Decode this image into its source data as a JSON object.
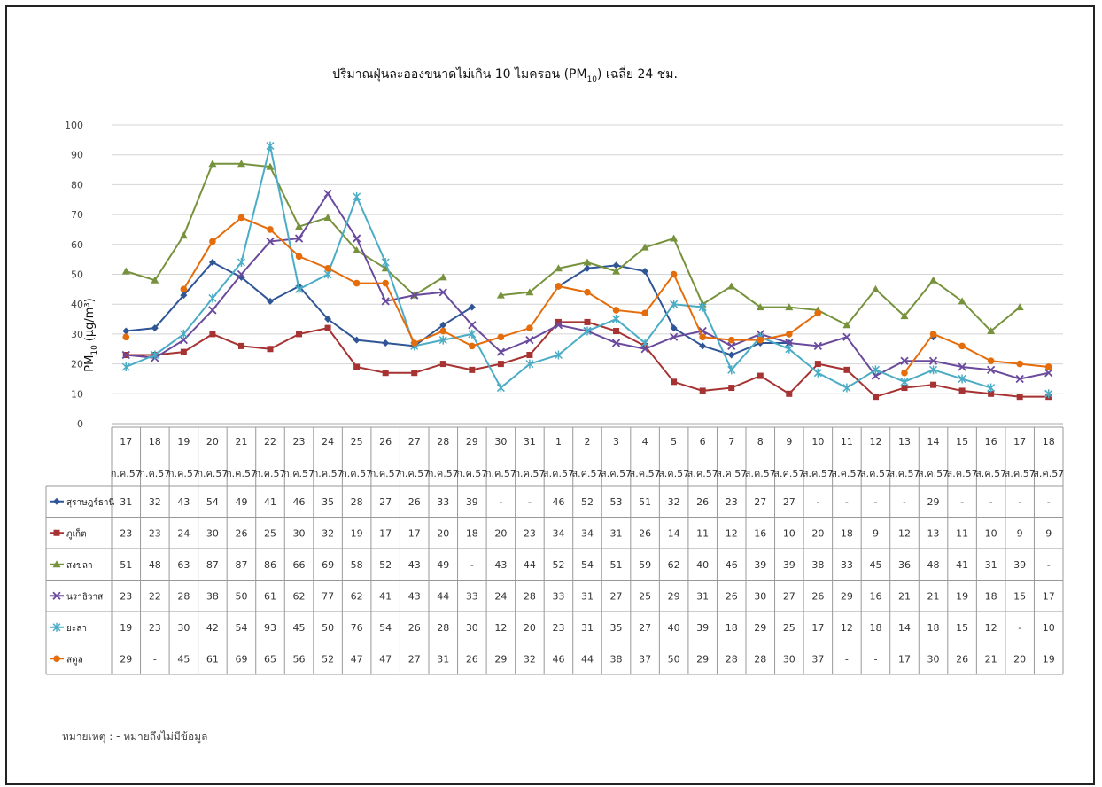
{
  "note": "หมายเหตุ : - หมายถึงไม่มีข้อมูล",
  "chart_data": {
    "type": "line",
    "title_main": "ปริมาณฝุ่นละอองขนาดไม่เกิน 10 ไมครอน (PM",
    "title_sub": "10",
    "title_end": ") เฉลี่ย 24 ชม.",
    "ylabel_main": "PM",
    "ylabel_sub": "10",
    "ylabel_unit": "(µg/m³)",
    "ylim": [
      0,
      100
    ],
    "yticks": [
      0,
      10,
      20,
      30,
      40,
      50,
      60,
      70,
      80,
      90,
      100
    ],
    "grid": true,
    "legend": "table",
    "x_day": [
      "17",
      "18",
      "19",
      "20",
      "21",
      "22",
      "23",
      "24",
      "25",
      "26",
      "27",
      "28",
      "29",
      "30",
      "31",
      "1",
      "2",
      "3",
      "4",
      "5",
      "6",
      "7",
      "8",
      "9",
      "10",
      "11",
      "12",
      "13",
      "14",
      "15",
      "16",
      "17",
      "18"
    ],
    "x_month": [
      "ก.ค.57",
      "ก.ค.57",
      "ก.ค.57",
      "ก.ค.57",
      "ก.ค.57",
      "ก.ค.57",
      "ก.ค.57",
      "ก.ค.57",
      "ก.ค.57",
      "ก.ค.57",
      "ก.ค.57",
      "ก.ค.57",
      "ก.ค.57",
      "ก.ค.57",
      "ก.ค.57",
      "ส.ค.57",
      "ส.ค.57",
      "ส.ค.57",
      "ส.ค.57",
      "ส.ค.57",
      "ส.ค.57",
      "ส.ค.57",
      "ส.ค.57",
      "ส.ค.57",
      "ส.ค.57",
      "ส.ค.57",
      "ส.ค.57",
      "ส.ค.57",
      "ส.ค.57",
      "ส.ค.57",
      "ส.ค.57",
      "ส.ค.57",
      "ส.ค.57"
    ],
    "missing_label": "-",
    "series": [
      {
        "name": "สุราษฎร์ธานี",
        "color": "#2f5597",
        "marker": "diamond",
        "values": [
          31,
          32,
          43,
          54,
          49,
          41,
          46,
          35,
          28,
          27,
          26,
          33,
          39,
          null,
          null,
          46,
          52,
          53,
          51,
          32,
          26,
          23,
          27,
          27,
          null,
          null,
          null,
          null,
          29,
          null,
          null,
          null,
          null
        ]
      },
      {
        "name": "ภูเก็ต",
        "color": "#a63232",
        "marker": "square",
        "values": [
          23,
          23,
          24,
          30,
          26,
          25,
          30,
          32,
          19,
          17,
          17,
          20,
          18,
          20,
          23,
          34,
          34,
          31,
          26,
          14,
          11,
          12,
          16,
          10,
          20,
          18,
          9,
          12,
          13,
          11,
          10,
          9,
          9
        ]
      },
      {
        "name": "สงขลา",
        "color": "#76923c",
        "marker": "triangle",
        "values": [
          51,
          48,
          63,
          87,
          87,
          86,
          66,
          69,
          58,
          52,
          43,
          49,
          null,
          43,
          44,
          52,
          54,
          51,
          59,
          62,
          40,
          46,
          39,
          39,
          38,
          33,
          45,
          36,
          48,
          41,
          31,
          39,
          null
        ]
      },
      {
        "name": "นราธิวาส",
        "color": "#6a4a9c",
        "marker": "x",
        "values": [
          23,
          22,
          28,
          38,
          50,
          61,
          62,
          77,
          62,
          41,
          43,
          44,
          33,
          24,
          28,
          33,
          31,
          27,
          25,
          29,
          31,
          26,
          30,
          27,
          26,
          29,
          16,
          21,
          21,
          19,
          18,
          15,
          17
        ]
      },
      {
        "name": "ยะลา",
        "color": "#4bacc6",
        "marker": "star",
        "values": [
          19,
          23,
          30,
          42,
          54,
          93,
          45,
          50,
          76,
          54,
          26,
          28,
          30,
          12,
          20,
          23,
          31,
          35,
          27,
          40,
          39,
          18,
          29,
          25,
          17,
          12,
          18,
          14,
          18,
          15,
          12,
          null,
          10
        ]
      },
      {
        "name": "สตูล",
        "color": "#e46c0a",
        "marker": "circle",
        "values": [
          29,
          null,
          45,
          61,
          69,
          65,
          56,
          52,
          47,
          47,
          27,
          31,
          26,
          29,
          32,
          46,
          44,
          38,
          37,
          50,
          29,
          28,
          28,
          30,
          37,
          null,
          null,
          17,
          30,
          26,
          21,
          20,
          19
        ]
      }
    ]
  }
}
